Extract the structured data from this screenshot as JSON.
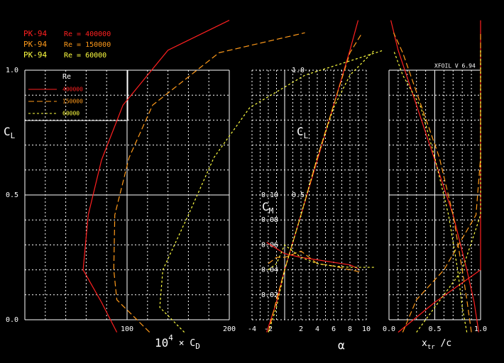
{
  "chart_data": {
    "type": "polar",
    "program": "XFOIL V 6.94",
    "legend_title": "Re",
    "cl_label": [
      "C",
      "L"
    ],
    "series": [
      {
        "name": "400000",
        "airfoil": "PK-94",
        "re_label": "Re = 400000",
        "color": "#ff2020",
        "dash": "none",
        "alpha": [
          -2.2,
          -1,
          0,
          2,
          4,
          6,
          8,
          9
        ],
        "cl": [
          -0.05,
          0.07,
          0.2,
          0.42,
          0.64,
          0.86,
          1.08,
          1.2
        ],
        "cd": [
          90,
          75,
          57,
          62,
          75,
          96,
          140,
          200
        ],
        "cm": [
          0.062,
          0.057,
          0.053,
          0.05,
          0.048,
          0.046,
          0.044,
          0.041
        ],
        "xtr_top": [
          0.98,
          0.93,
          0.85,
          0.7,
          0.5,
          0.3,
          0.1,
          0.02
        ],
        "xtr_bot": [
          0.1,
          0.5,
          1.0,
          1.0,
          1.0,
          1.0,
          1.0,
          1.0
        ]
      },
      {
        "name": "150000",
        "airfoil": "PK-94",
        "re_label": "Re = 150000",
        "color": "#ff9a1a",
        "dash": "8 4",
        "alpha": [
          -2,
          -1,
          0,
          2,
          4,
          6,
          8,
          9.5
        ],
        "cl": [
          -0.05,
          0.08,
          0.2,
          0.42,
          0.65,
          0.86,
          1.07,
          1.15
        ],
        "cd": [
          122,
          90,
          87,
          88,
          102,
          125,
          190,
          274
        ],
        "cm": [
          0.045,
          0.05,
          0.05,
          0.055,
          0.045,
          0.043,
          0.04,
          0.038
        ],
        "xtr_top": [
          0.9,
          0.85,
          0.8,
          0.7,
          0.55,
          0.35,
          0.15,
          0.05
        ],
        "xtr_bot": [
          0.15,
          0.3,
          0.6,
          0.95,
          1.0,
          1.0,
          1.0,
          1.0
        ]
      },
      {
        "name": "60000",
        "airfoil": "PK-94",
        "re_label": "Re = 60000",
        "color": "#ffff40",
        "dash": "3 3",
        "alpha": [
          -2,
          -1,
          0,
          2,
          4,
          6,
          8,
          11
        ],
        "cl": [
          -0.05,
          0.05,
          0.2,
          0.42,
          0.65,
          0.85,
          0.98,
          1.08
        ],
        "cd": [
          156,
          132,
          135,
          160,
          185,
          220,
          274,
          351
        ],
        "cm": [
          0.04,
          0.045,
          0.06,
          0.05,
          0.045,
          0.043,
          0.042,
          0.042
        ],
        "xtr_top": [
          0.85,
          0.8,
          0.75,
          0.65,
          0.5,
          0.35,
          0.15,
          0.05
        ],
        "xtr_bot": [
          0.3,
          0.5,
          0.8,
          1.0,
          1.0,
          1.0,
          1.0,
          1.0
        ]
      }
    ],
    "drag": {
      "xlabel": [
        "10",
        "4",
        " × C",
        "D"
      ],
      "xlim": [
        0,
        200
      ],
      "xticks": [
        100,
        200
      ],
      "xminor": 20,
      "ylim": [
        0,
        1
      ],
      "yticks": [
        {
          "value": 0,
          "label": "0.0"
        },
        0.5,
        {
          "value": 1,
          "label": "1.0"
        }
      ],
      "yminor": 0.1,
      "major_grid": true
    },
    "alpha": {
      "xlabel": "α",
      "xlim": [
        -4,
        10
      ],
      "xticks": [
        -4,
        -2,
        2,
        4,
        6,
        8,
        10
      ],
      "xminor": 1,
      "yticks": [
        0.5,
        {
          "value": 1,
          "label": "1.0"
        }
      ],
      "major_grid": false,
      "cm_label": [
        "C",
        "M"
      ],
      "cmlim": [
        0,
        0.2
      ],
      "cmticks": [
        0.02,
        0.04,
        0.06,
        0.08,
        {
          "value": 0.1,
          "label": "0.10"
        }
      ]
    },
    "transition": {
      "xlabel": [
        "x",
        "tr",
        " /c"
      ],
      "xlim": [
        0,
        1
      ],
      "xticks": [
        {
          "value": 0,
          "label": "0.0"
        },
        0.5,
        {
          "value": 1,
          "label": "1.0"
        }
      ],
      "xminor": 0.1,
      "major_grid": true
    }
  }
}
